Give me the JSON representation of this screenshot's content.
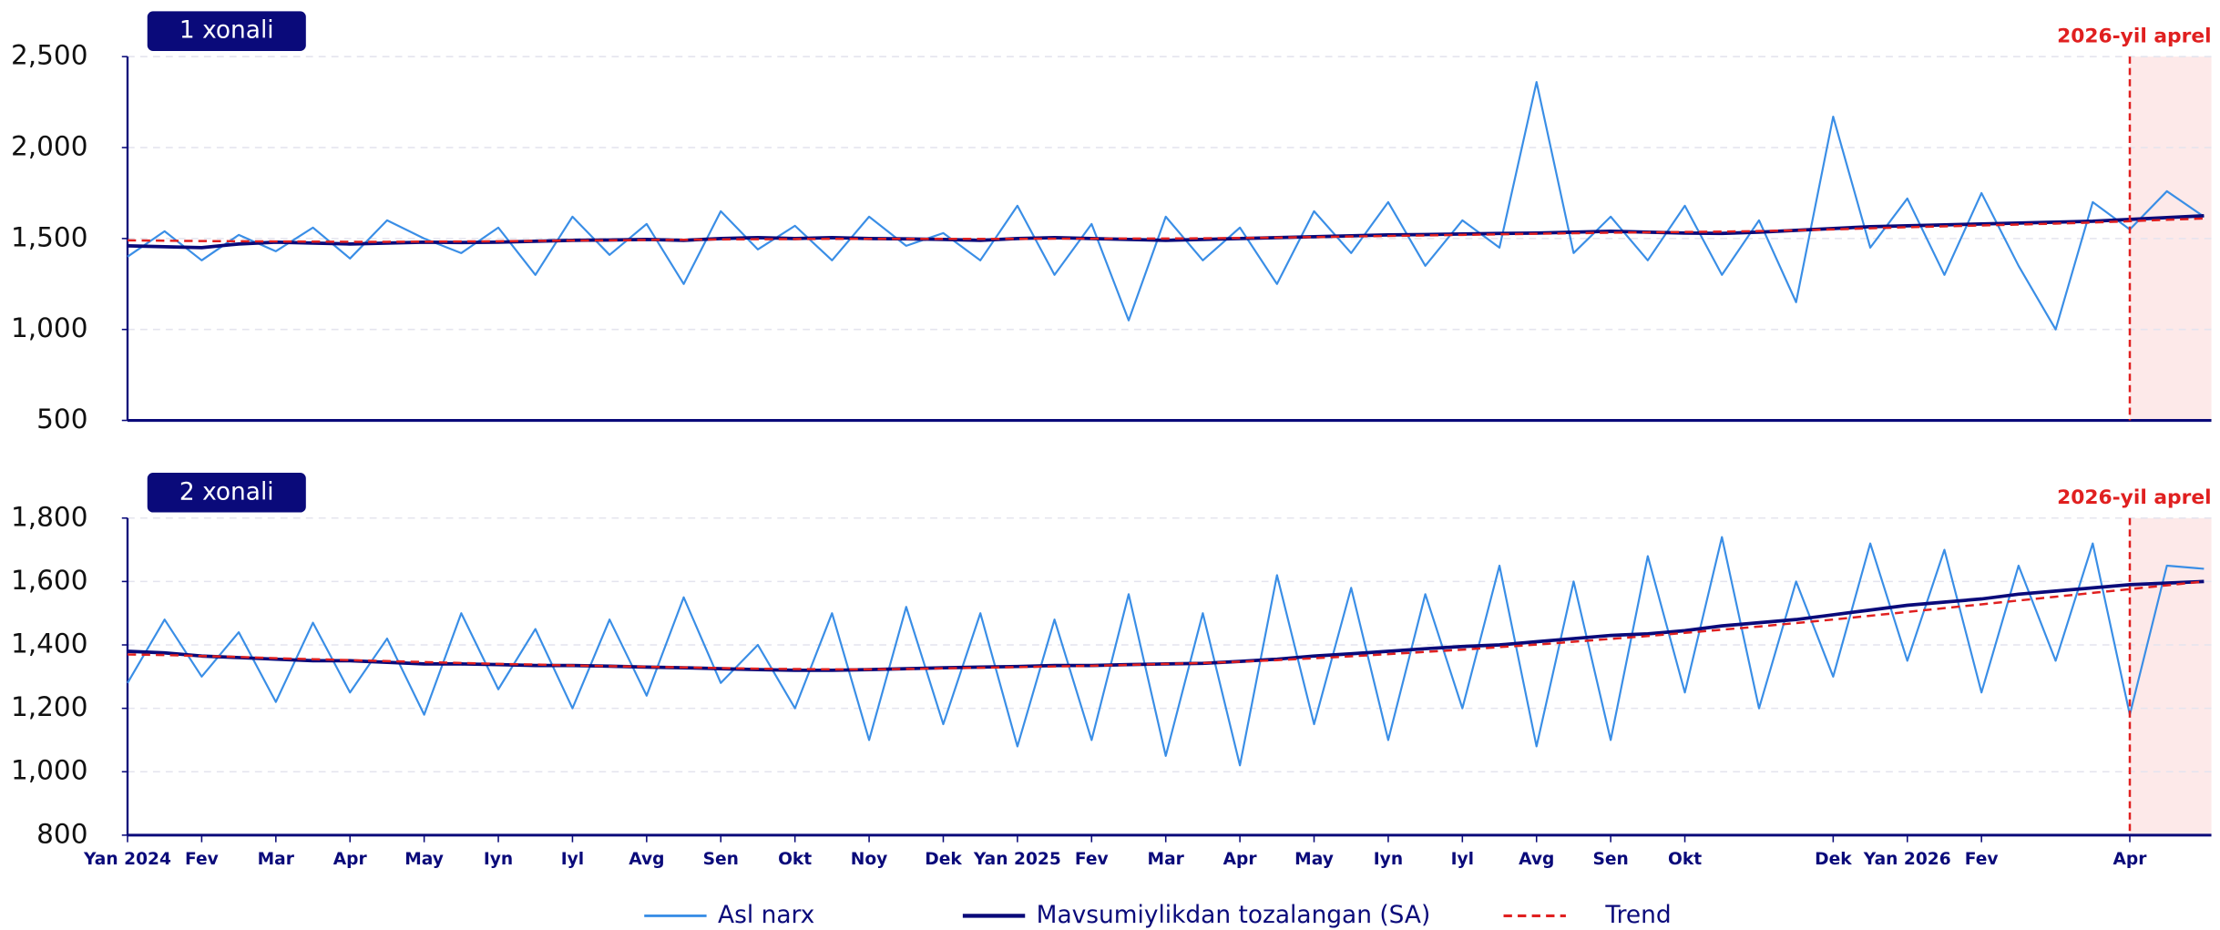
{
  "chart_data": [
    {
      "type": "line",
      "label": "1 xonali",
      "x": [
        0,
        0.5,
        1,
        1.5,
        2,
        2.5,
        3,
        3.5,
        4,
        4.5,
        5,
        5.5,
        6,
        6.5,
        7,
        7.5,
        8,
        8.5,
        9,
        9.5,
        10,
        10.5,
        11,
        11.5,
        12,
        12.5,
        13,
        13.5,
        14,
        14.5,
        15,
        15.5,
        16,
        16.5,
        17,
        17.5,
        18,
        18.5,
        19,
        19.5,
        20,
        20.5,
        21,
        21.5,
        22,
        22.5,
        23,
        23.5,
        24,
        24.5,
        25,
        25.5,
        26,
        26.5,
        27,
        27.5,
        28
      ],
      "xlim": [
        0,
        28.1
      ],
      "ylim": [
        500,
        2500
      ],
      "yticks": [
        500,
        {
          "value": 1000,
          "label": "1,000"
        },
        {
          "value": 1500,
          "label": "1,500"
        },
        {
          "value": 2000,
          "label": "2,000"
        },
        {
          "value": 2500,
          "label": "2,500"
        }
      ],
      "grid": true,
      "vline": {
        "x": 27,
        "label": "2026-yil aprel",
        "color": "#e02020"
      },
      "series": [
        {
          "color": "#3a8ee6",
          "style": "solid",
          "width": 1.4,
          "values": [
            1400,
            1540,
            1380,
            1520,
            1430,
            1560,
            1390,
            1600,
            1500,
            1420,
            1560,
            1300,
            1620,
            1410,
            1580,
            1250,
            1650,
            1440,
            1570,
            1380,
            1620,
            1460,
            1530,
            1380,
            1680,
            1300,
            1580,
            1050,
            1620,
            1380,
            1560,
            1250,
            1650,
            1420,
            1700,
            1350,
            1600,
            1450,
            2360,
            1420,
            1620,
            1380,
            1680,
            1300,
            1600,
            1150,
            2170,
            1450,
            1720,
            1300,
            1750,
            1350,
            1000,
            1700,
            1550,
            1760,
            1620
          ]
        },
        {
          "color": "#0a0a7a",
          "style": "solid",
          "width": 2.4,
          "values": [
            1460,
            1455,
            1450,
            1470,
            1480,
            1475,
            1470,
            1475,
            1480,
            1478,
            1480,
            1485,
            1490,
            1492,
            1495,
            1490,
            1500,
            1505,
            1500,
            1505,
            1500,
            1498,
            1495,
            1490,
            1500,
            1505,
            1500,
            1495,
            1490,
            1495,
            1500,
            1505,
            1510,
            1515,
            1520,
            1522,
            1525,
            1528,
            1530,
            1535,
            1540,
            1535,
            1530,
            1528,
            1535,
            1545,
            1555,
            1565,
            1570,
            1575,
            1580,
            1585,
            1590,
            1595,
            1605,
            1615,
            1625
          ]
        },
        {
          "color": "#e02020",
          "style": "dashed",
          "width": 1.6,
          "values": [
            1490,
            1488,
            1486,
            1485,
            1484,
            1483,
            1482,
            1482,
            1483,
            1484,
            1485,
            1487,
            1489,
            1490,
            1492,
            1493,
            1495,
            1496,
            1497,
            1498,
            1498,
            1498,
            1498,
            1498,
            1498,
            1499,
            1499,
            1500,
            1500,
            1501,
            1503,
            1505,
            1508,
            1511,
            1514,
            1517,
            1520,
            1523,
            1526,
            1529,
            1532,
            1534,
            1536,
            1538,
            1541,
            1545,
            1550,
            1556,
            1562,
            1567,
            1572,
            1577,
            1582,
            1588,
            1595,
            1603,
            1610
          ]
        }
      ]
    },
    {
      "type": "line",
      "label": "2 xonali",
      "x": [
        0,
        0.5,
        1,
        1.5,
        2,
        2.5,
        3,
        3.5,
        4,
        4.5,
        5,
        5.5,
        6,
        6.5,
        7,
        7.5,
        8,
        8.5,
        9,
        9.5,
        10,
        10.5,
        11,
        11.5,
        12,
        12.5,
        13,
        13.5,
        14,
        14.5,
        15,
        15.5,
        16,
        16.5,
        17,
        17.5,
        18,
        18.5,
        19,
        19.5,
        20,
        20.5,
        21,
        21.5,
        22,
        22.5,
        23,
        23.5,
        24,
        24.5,
        25,
        25.5,
        26,
        26.5,
        27,
        27.5,
        28
      ],
      "xlim": [
        0,
        28.1
      ],
      "xticks": [
        {
          "value": 0,
          "label": "Yan 2024"
        },
        {
          "value": 1,
          "label": "Fev"
        },
        {
          "value": 2,
          "label": "Mar"
        },
        {
          "value": 3,
          "label": "Apr"
        },
        {
          "value": 4,
          "label": "May"
        },
        {
          "value": 5,
          "label": "Iyn"
        },
        {
          "value": 6,
          "label": "Iyl"
        },
        {
          "value": 7,
          "label": "Avg"
        },
        {
          "value": 8,
          "label": "Sen"
        },
        {
          "value": 9,
          "label": "Okt"
        },
        {
          "value": 10,
          "label": "Noy"
        },
        {
          "value": 11,
          "label": "Dek"
        },
        {
          "value": 12,
          "label": "Yan 2025"
        },
        {
          "value": 13,
          "label": "Fev"
        },
        {
          "value": 14,
          "label": "Mar"
        },
        {
          "value": 15,
          "label": "Apr"
        },
        {
          "value": 16,
          "label": "May"
        },
        {
          "value": 17,
          "label": "Iyn"
        },
        {
          "value": 18,
          "label": "Iyl"
        },
        {
          "value": 19,
          "label": "Avg"
        },
        {
          "value": 20,
          "label": "Sen"
        },
        {
          "value": 21,
          "label": "Okt"
        },
        {
          "value": 23,
          "label": "Dek"
        },
        {
          "value": 24,
          "label": "Yan 2026"
        },
        {
          "value": 25,
          "label": "Fev"
        },
        {
          "value": 27,
          "label": "Apr"
        }
      ],
      "ylim": [
        800,
        1800
      ],
      "yticks": [
        800,
        {
          "value": 1000,
          "label": "1,000"
        },
        {
          "value": 1200,
          "label": "1,200"
        },
        {
          "value": 1400,
          "label": "1,400"
        },
        {
          "value": 1600,
          "label": "1,600"
        },
        {
          "value": 1800,
          "label": "1,800"
        }
      ],
      "grid": true,
      "vline": {
        "x": 27,
        "label": "2026-yil aprel",
        "color": "#e02020"
      },
      "series": [
        {
          "name": "Asl narx",
          "color": "#3a8ee6",
          "style": "solid",
          "width": 1.4,
          "values": [
            1280,
            1480,
            1300,
            1440,
            1220,
            1470,
            1250,
            1420,
            1180,
            1500,
            1260,
            1450,
            1200,
            1480,
            1240,
            1550,
            1280,
            1400,
            1200,
            1500,
            1100,
            1520,
            1150,
            1500,
            1080,
            1480,
            1100,
            1560,
            1050,
            1500,
            1020,
            1620,
            1150,
            1580,
            1100,
            1560,
            1200,
            1650,
            1080,
            1600,
            1100,
            1680,
            1250,
            1740,
            1200,
            1600,
            1300,
            1720,
            1350,
            1700,
            1250,
            1650,
            1350,
            1720,
            1180,
            1650,
            1640
          ]
        },
        {
          "name": "Mavsumiylikdan tozalangan (SA)",
          "color": "#0a0a7a",
          "style": "solid",
          "width": 2.4,
          "values": [
            1380,
            1375,
            1365,
            1360,
            1355,
            1350,
            1350,
            1345,
            1340,
            1340,
            1338,
            1335,
            1335,
            1333,
            1330,
            1328,
            1325,
            1322,
            1320,
            1320,
            1322,
            1325,
            1328,
            1330,
            1332,
            1335,
            1335,
            1338,
            1340,
            1342,
            1348,
            1355,
            1365,
            1372,
            1380,
            1388,
            1395,
            1400,
            1410,
            1420,
            1430,
            1435,
            1445,
            1460,
            1470,
            1480,
            1495,
            1510,
            1525,
            1535,
            1545,
            1560,
            1570,
            1580,
            1590,
            1595,
            1600
          ]
        },
        {
          "name": "Trend",
          "color": "#e02020",
          "style": "dashed",
          "width": 1.6,
          "values": [
            1370,
            1368,
            1365,
            1362,
            1358,
            1355,
            1352,
            1349,
            1346,
            1343,
            1340,
            1338,
            1335,
            1333,
            1331,
            1329,
            1327,
            1325,
            1324,
            1323,
            1323,
            1324,
            1326,
            1328,
            1330,
            1332,
            1334,
            1337,
            1340,
            1343,
            1347,
            1352,
            1358,
            1364,
            1371,
            1378,
            1385,
            1393,
            1401,
            1410,
            1419,
            1428,
            1438,
            1448,
            1458,
            1469,
            1480,
            1492,
            1504,
            1516,
            1528,
            1540,
            1552,
            1564,
            1576,
            1588,
            1600
          ]
        }
      ]
    }
  ]
}
